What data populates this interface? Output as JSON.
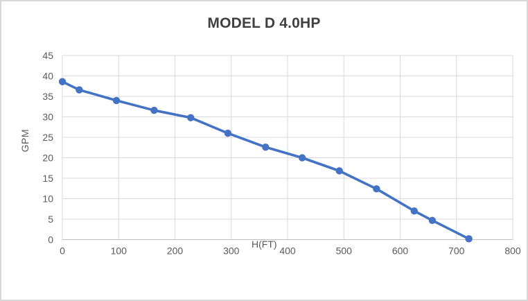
{
  "chart_data": {
    "type": "line",
    "title": "MODEL D 4.0HP",
    "xlabel": "H(FT)",
    "ylabel": "GPM",
    "xlim": [
      0,
      800
    ],
    "ylim": [
      0,
      45
    ],
    "x_ticks": [
      0,
      100,
      200,
      300,
      400,
      500,
      600,
      700,
      800
    ],
    "y_ticks": [
      0,
      5,
      10,
      15,
      20,
      25,
      30,
      35,
      40,
      45
    ],
    "grid": true,
    "legend": "none",
    "series": [
      {
        "name": "MODEL D 4.0HP",
        "points": [
          [
            0,
            38.6
          ],
          [
            30,
            36.6
          ],
          [
            96,
            34.0
          ],
          [
            163,
            31.6
          ],
          [
            228,
            29.8
          ],
          [
            294,
            26.0
          ],
          [
            361,
            22.6
          ],
          [
            426,
            20.0
          ],
          [
            492,
            16.8
          ],
          [
            558,
            12.4
          ],
          [
            625,
            7.0
          ],
          [
            657,
            4.7
          ],
          [
            722,
            0.2
          ]
        ]
      }
    ],
    "colors": {
      "line": "#4472C4",
      "marker": "#4472C4",
      "grid": "#D9D9D9",
      "axis": "#BFBFBF",
      "tick_text": "#595959",
      "title_text": "#404040"
    }
  }
}
